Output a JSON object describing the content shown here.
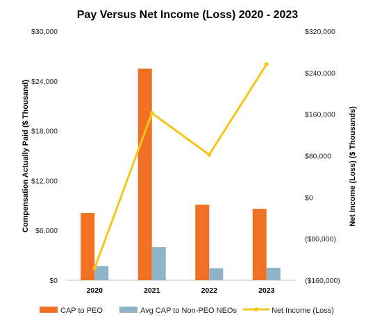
{
  "chart_data": {
    "type": "bar",
    "title": "Pay Versus Net Income (Loss) 2020 - 2023",
    "categories": [
      "2020",
      "2021",
      "2022",
      "2023"
    ],
    "ylabel": "Compensation Actually Paid ($ Thousand)",
    "ylabel_right": "Net Income (Loss) ($ Thousands)",
    "ylim": [
      0,
      30000
    ],
    "ylim_right": [
      -160000,
      320000
    ],
    "left_ticks": [
      "$0",
      "$6,000",
      "$12,000",
      "$18,000",
      "$24,000",
      "$30,000"
    ],
    "left_tick_values": [
      0,
      6000,
      12000,
      18000,
      24000,
      30000
    ],
    "right_ticks": [
      "($160,000)",
      "($80,000)",
      "$0",
      "$80,000",
      "$160,000",
      "$240,000",
      "$320,000"
    ],
    "right_tick_values": [
      -160000,
      -80000,
      0,
      80000,
      160000,
      240000,
      320000
    ],
    "grid": false,
    "legend_position": "bottom",
    "series": [
      {
        "name": "CAP to PEO",
        "type": "bar",
        "axis": "left",
        "color": "#F07024",
        "values": [
          8100,
          25500,
          9100,
          8600
        ]
      },
      {
        "name": "Avg CAP to Non-PEO NEOs",
        "type": "bar",
        "axis": "left",
        "color": "#8FB4C7",
        "values": [
          1700,
          4000,
          1450,
          1500
        ]
      },
      {
        "name": "Net Income (Loss)",
        "type": "line",
        "axis": "right",
        "color": "#F5C518",
        "values": [
          -137000,
          162000,
          82000,
          256000
        ]
      }
    ]
  }
}
